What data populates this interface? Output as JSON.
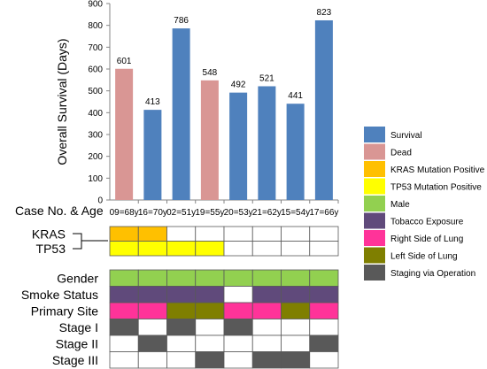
{
  "colors": {
    "survival": "#4f81bd",
    "dead": "#d99694",
    "kras": "#ffc000",
    "tp53": "#ffff00",
    "male": "#92d050",
    "tobacco": "#604a7b",
    "right_lung": "#ff3399",
    "left_lung": "#7f7f00",
    "staging": "#595959",
    "empty": "#ffffff"
  },
  "chart_data": {
    "type": "bar",
    "ylabel": "Overall Survival (Days)",
    "xlabel": "Case No. & Age",
    "ylim": [
      0,
      900
    ],
    "yticks": [
      0,
      100,
      200,
      300,
      400,
      500,
      600,
      700,
      800,
      900
    ],
    "categories": [
      "09=68y",
      "16=70y",
      "02=51y",
      "19=55y",
      "20=53y",
      "21=62y",
      "15=54y",
      "17=66y"
    ],
    "values": [
      601,
      413,
      786,
      548,
      492,
      521,
      441,
      823
    ],
    "status": [
      "dead",
      "survival",
      "survival",
      "dead",
      "survival",
      "survival",
      "survival",
      "survival"
    ],
    "grid": false,
    "legend_position": "right",
    "legend": [
      {
        "key": "survival",
        "label": "Survival"
      },
      {
        "key": "dead",
        "label": "Dead"
      },
      {
        "key": "kras",
        "label": "KRAS Mutation Positive"
      },
      {
        "key": "tp53",
        "label": "TP53 Mutation Positive"
      },
      {
        "key": "male",
        "label": "Male"
      },
      {
        "key": "tobacco",
        "label": "Tobacco Exposure"
      },
      {
        "key": "right_lung",
        "label": "Right Side of Lung"
      },
      {
        "key": "left_lung",
        "label": "Left Side of Lung"
      },
      {
        "key": "staging",
        "label": "Staging via Operation"
      }
    ],
    "mutation_rows": [
      {
        "label": "KRAS",
        "cells": [
          "kras",
          "kras",
          "empty",
          "empty",
          "empty",
          "empty",
          "empty",
          "empty"
        ]
      },
      {
        "label": "TP53",
        "cells": [
          "tp53",
          "tp53",
          "tp53",
          "tp53",
          "empty",
          "empty",
          "empty",
          "empty"
        ]
      }
    ],
    "clinical_rows": [
      {
        "label": "Gender",
        "cells": [
          "male",
          "male",
          "male",
          "male",
          "male",
          "male",
          "male",
          "male"
        ]
      },
      {
        "label": "Smoke Status",
        "cells": [
          "tobacco",
          "tobacco",
          "tobacco",
          "tobacco",
          "empty",
          "tobacco",
          "tobacco",
          "tobacco"
        ]
      },
      {
        "label": "Primary Site",
        "cells": [
          "right_lung",
          "right_lung",
          "left_lung",
          "left_lung",
          "right_lung",
          "right_lung",
          "left_lung",
          "right_lung"
        ]
      },
      {
        "label": "Stage I",
        "cells": [
          "staging",
          "empty",
          "staging",
          "empty",
          "staging",
          "empty",
          "empty",
          "empty"
        ]
      },
      {
        "label": "Stage II",
        "cells": [
          "empty",
          "staging",
          "empty",
          "empty",
          "empty",
          "empty",
          "empty",
          "staging"
        ]
      },
      {
        "label": "Stage III",
        "cells": [
          "empty",
          "empty",
          "empty",
          "staging",
          "empty",
          "staging",
          "staging",
          "empty"
        ]
      }
    ]
  }
}
